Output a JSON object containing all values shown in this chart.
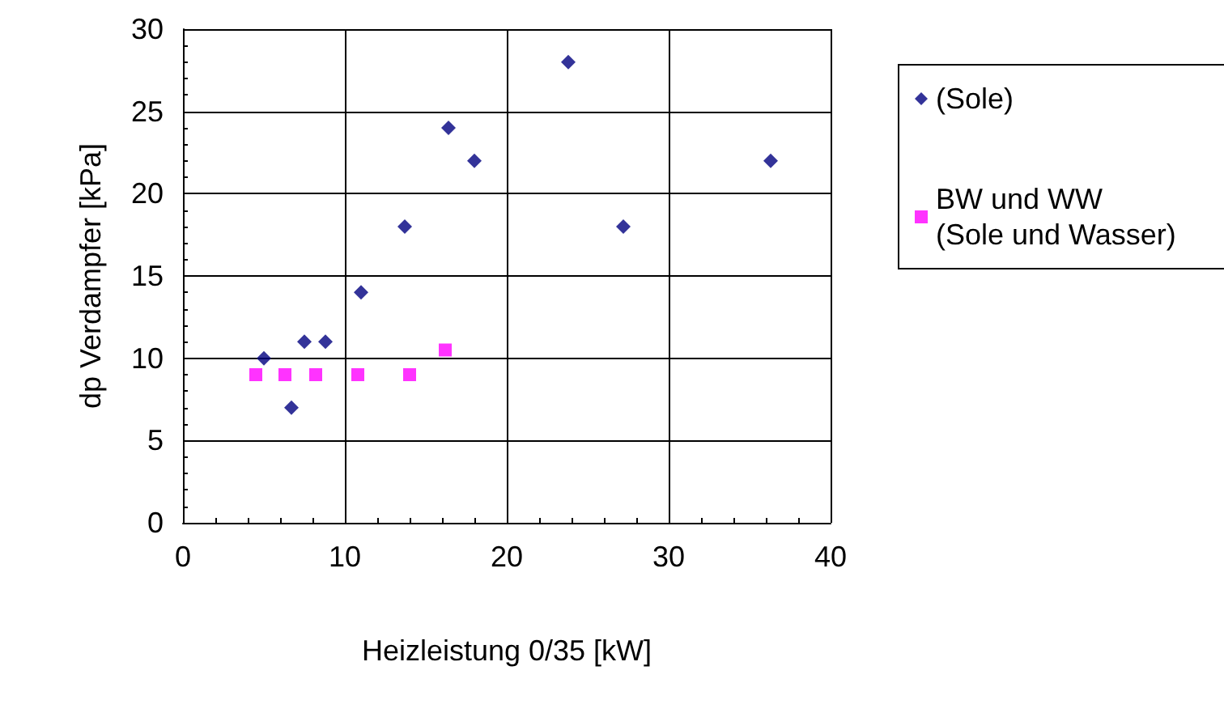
{
  "chart_data": {
    "type": "scatter",
    "xlabel": "Heizleistung 0/35 [kW]",
    "ylabel": "dp Verdampfer [kPa]",
    "xlim": [
      0,
      40
    ],
    "xticks": [
      0,
      10,
      20,
      30,
      40
    ],
    "ylim": [
      0,
      30
    ],
    "yticks": [
      0,
      5,
      10,
      15,
      20,
      25,
      30
    ],
    "grid": true,
    "legend": "right",
    "series": [
      {
        "name": "(Sole)",
        "color": "#000080",
        "marker": "diamond",
        "x": [
          5,
          6.7,
          7.5,
          8.8,
          11,
          13.7,
          16.4,
          18,
          23.8,
          27.2,
          36.3
        ],
        "values": [
          10,
          7,
          11,
          11,
          14,
          18,
          24,
          22,
          28,
          18,
          22
        ]
      },
      {
        "name": "BW und WW (Sole und Wasser)",
        "color": "#ff00ff",
        "marker": "square",
        "x": [
          4.5,
          6.3,
          8.2,
          10.8,
          14,
          16.2
        ],
        "values": [
          9,
          9,
          9,
          9,
          9,
          10.5
        ]
      }
    ]
  }
}
